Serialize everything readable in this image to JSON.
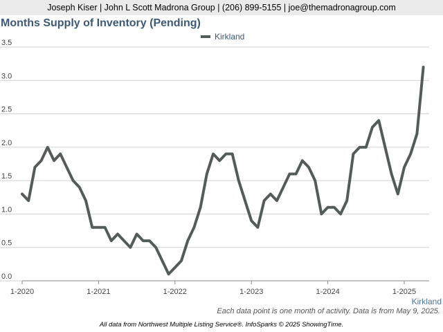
{
  "header": {
    "contact": "Joseph Kiser | John L Scott Madrona Group | (206) 899-5155 | joe@themadronagroup.com",
    "title": "Months Supply of Inventory (Pending)"
  },
  "legend": {
    "label": "Kirkland"
  },
  "note": "Each data point is one month of activity. Data is from May 9, 2025.",
  "footer": "All data from Northwest Multiple Listing Service®. InfoSparks © 2025 ShowingTime.",
  "region_label": "Kirkland",
  "colors": {
    "line": "#545c5a",
    "title": "#3c5a78",
    "grid": "#d0d0d0"
  },
  "chart_data": {
    "type": "line",
    "title": "Months Supply of Inventory (Pending)",
    "xlabel": "",
    "ylabel": "",
    "ylim": [
      0,
      3.5
    ],
    "yticks": [
      "0.0",
      "0.5",
      "1.0",
      "1.5",
      "2.0",
      "2.5",
      "3.0",
      "3.5"
    ],
    "xticks": [
      "1-2020",
      "1-2021",
      "1-2022",
      "1-2023",
      "1-2024",
      "1-2025"
    ],
    "grid": true,
    "legend_position": "top",
    "series": [
      {
        "name": "Kirkland",
        "x_start": "1-2020",
        "values": [
          1.3,
          1.2,
          1.7,
          1.8,
          2.0,
          1.8,
          1.9,
          1.7,
          1.5,
          1.4,
          1.2,
          0.8,
          0.8,
          0.8,
          0.6,
          0.7,
          0.6,
          0.5,
          0.7,
          0.6,
          0.6,
          0.5,
          0.3,
          0.1,
          0.2,
          0.3,
          0.6,
          0.8,
          1.1,
          1.6,
          1.9,
          1.8,
          1.9,
          1.9,
          1.5,
          1.2,
          0.9,
          0.8,
          1.2,
          1.3,
          1.2,
          1.4,
          1.6,
          1.6,
          1.8,
          1.7,
          1.5,
          1.0,
          1.1,
          1.1,
          1.0,
          1.2,
          1.9,
          2.0,
          2.0,
          2.3,
          2.4,
          2.0,
          1.6,
          1.3,
          1.7,
          1.9,
          2.2,
          3.2
        ]
      }
    ]
  }
}
